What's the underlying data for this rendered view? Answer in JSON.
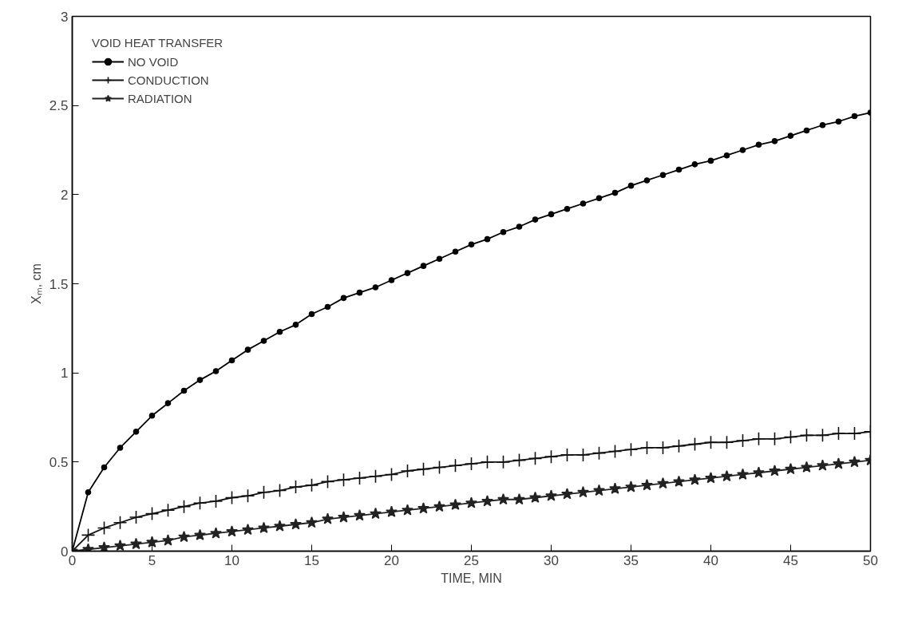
{
  "chart_data": {
    "type": "line",
    "xlabel": "TIME, MIN",
    "ylabel": "Xₘ, cm",
    "legend_title": "VOID HEAT TRANSFER",
    "legend": "top left",
    "grid": false,
    "x": [
      0,
      1,
      2,
      3,
      4,
      5,
      6,
      7,
      8,
      9,
      10,
      11,
      12,
      13,
      14,
      15,
      16,
      17,
      18,
      19,
      20,
      21,
      22,
      23,
      24,
      25,
      26,
      27,
      28,
      29,
      30,
      31,
      32,
      33,
      34,
      35,
      36,
      37,
      38,
      39,
      40,
      41,
      42,
      43,
      44,
      45,
      46,
      47,
      48,
      49,
      50
    ],
    "xlim": [
      0,
      50
    ],
    "xticks": [
      0,
      5,
      10,
      15,
      20,
      25,
      30,
      35,
      40,
      45,
      50
    ],
    "ylim": [
      0,
      3
    ],
    "yticks": [
      0,
      0.5,
      1,
      1.5,
      2,
      2.5,
      3
    ],
    "series": [
      {
        "name": "NO VOID",
        "color": "#000000",
        "marker": "circle",
        "values": [
          0,
          0.33,
          0.47,
          0.58,
          0.67,
          0.76,
          0.83,
          0.9,
          0.96,
          1.01,
          1.07,
          1.13,
          1.18,
          1.23,
          1.27,
          1.33,
          1.37,
          1.42,
          1.45,
          1.48,
          1.52,
          1.56,
          1.6,
          1.64,
          1.68,
          1.72,
          1.75,
          1.79,
          1.82,
          1.86,
          1.89,
          1.92,
          1.95,
          1.98,
          2.01,
          2.05,
          2.08,
          2.11,
          2.14,
          2.17,
          2.19,
          2.22,
          2.25,
          2.28,
          2.3,
          2.33,
          2.36,
          2.39,
          2.41,
          2.44,
          2.46
        ]
      },
      {
        "name": "CONDUCTION",
        "color": "#111111",
        "marker": "cross",
        "values": [
          0,
          0.09,
          0.13,
          0.16,
          0.19,
          0.21,
          0.23,
          0.25,
          0.27,
          0.28,
          0.3,
          0.31,
          0.33,
          0.34,
          0.36,
          0.37,
          0.39,
          0.4,
          0.41,
          0.42,
          0.43,
          0.45,
          0.46,
          0.47,
          0.48,
          0.49,
          0.5,
          0.5,
          0.51,
          0.52,
          0.53,
          0.54,
          0.54,
          0.55,
          0.56,
          0.57,
          0.58,
          0.58,
          0.59,
          0.6,
          0.61,
          0.61,
          0.62,
          0.63,
          0.63,
          0.64,
          0.65,
          0.65,
          0.66,
          0.66,
          0.67
        ]
      },
      {
        "name": "RADIATION",
        "color": "#222222",
        "marker": "star",
        "values": [
          0,
          0.01,
          0.02,
          0.03,
          0.04,
          0.05,
          0.06,
          0.08,
          0.09,
          0.1,
          0.11,
          0.12,
          0.13,
          0.14,
          0.15,
          0.16,
          0.18,
          0.19,
          0.2,
          0.21,
          0.22,
          0.23,
          0.24,
          0.25,
          0.26,
          0.27,
          0.28,
          0.29,
          0.29,
          0.3,
          0.31,
          0.32,
          0.33,
          0.34,
          0.35,
          0.36,
          0.37,
          0.38,
          0.39,
          0.4,
          0.41,
          0.42,
          0.43,
          0.44,
          0.45,
          0.46,
          0.47,
          0.48,
          0.49,
          0.5,
          0.51
        ]
      }
    ]
  }
}
